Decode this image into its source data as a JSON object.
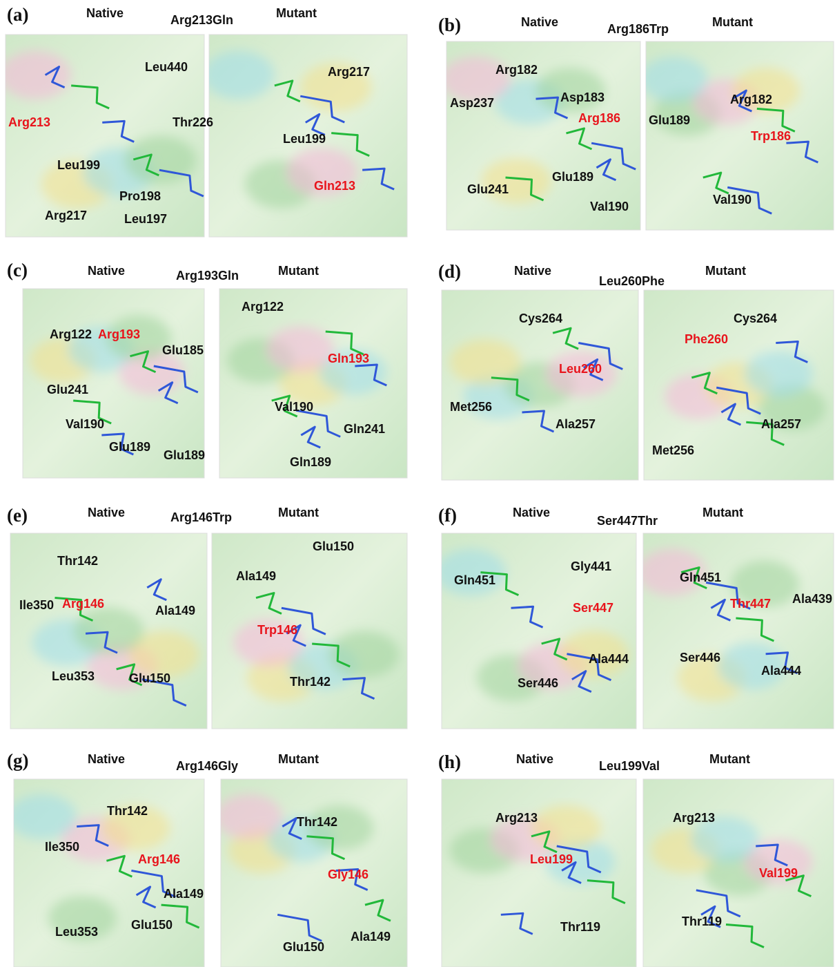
{
  "panels": [
    {
      "label": "(a)",
      "native": "Native",
      "mutation": "Arg213Gln",
      "mutant": "Mutant",
      "native_residues": [
        "Leu440",
        "Arg213",
        "Thr226",
        "Leu199",
        "Pro198",
        "Arg217",
        "Leu197"
      ],
      "mutant_residues": [
        "Arg217",
        "Leu199",
        "Gln213"
      ]
    },
    {
      "label": "(b)",
      "native": "Native",
      "mutation": "Arg186Trp",
      "mutant": "Mutant",
      "native_residues": [
        "Arg182",
        "Asp183",
        "Asp237",
        "Arg186",
        "Glu189",
        "Glu241",
        "Val190"
      ],
      "mutant_residues": [
        "Arg182",
        "Glu189",
        "Trp186",
        "Val190"
      ]
    },
    {
      "label": "(c)",
      "native": "Native",
      "mutation": "Arg193Gln",
      "mutant": "Mutant",
      "native_residues": [
        "Arg122",
        "Arg193",
        "Glu185",
        "Glu241",
        "Val190",
        "Glu189",
        "Glu189"
      ],
      "mutant_residues": [
        "Arg122",
        "Gln193",
        "Val190",
        "Gln241",
        "Gln189"
      ]
    },
    {
      "label": "(d)",
      "native": "Native",
      "mutation": "Leu260Phe",
      "mutant": "Mutant",
      "native_residues": [
        "Cys264",
        "Leu260",
        "Met256",
        "Ala257"
      ],
      "mutant_residues": [
        "Cys264",
        "Phe260",
        "Ala257",
        "Met256"
      ]
    },
    {
      "label": "(e)",
      "native": "Native",
      "mutation": "Arg146Trp",
      "mutant": "Mutant",
      "native_residues": [
        "Thr142",
        "Ile350",
        "Arg146",
        "Ala149",
        "Leu353",
        "Glu150"
      ],
      "mutant_residues": [
        "Glu150",
        "Ala149",
        "Trp146",
        "Thr142"
      ]
    },
    {
      "label": "(f)",
      "native": "Native",
      "mutation": "Ser447Thr",
      "mutant": "Mutant",
      "native_residues": [
        "Gly441",
        "Gln451",
        "Ser447",
        "Ala444",
        "Ser446"
      ],
      "mutant_residues": [
        "Gln451",
        "Thr447",
        "Ala439",
        "Ser446",
        "Ala444"
      ]
    },
    {
      "label": "(g)",
      "native": "Native",
      "mutation": "Arg146Gly",
      "mutant": "Mutant",
      "native_residues": [
        "Thr142",
        "Ile350",
        "Arg146",
        "Ala149",
        "Glu150",
        "Leu353"
      ],
      "mutant_residues": [
        "Thr142",
        "Gly146",
        "Ala149",
        "Glu150"
      ]
    },
    {
      "label": "(h)",
      "native": "Native",
      "mutation": "Leu199Val",
      "mutant": "Mutant",
      "native_residues": [
        "Arg213",
        "Leu199",
        "Thr119"
      ],
      "mutant_residues": [
        "Arg213",
        "Val199",
        "Thr119"
      ]
    }
  ]
}
